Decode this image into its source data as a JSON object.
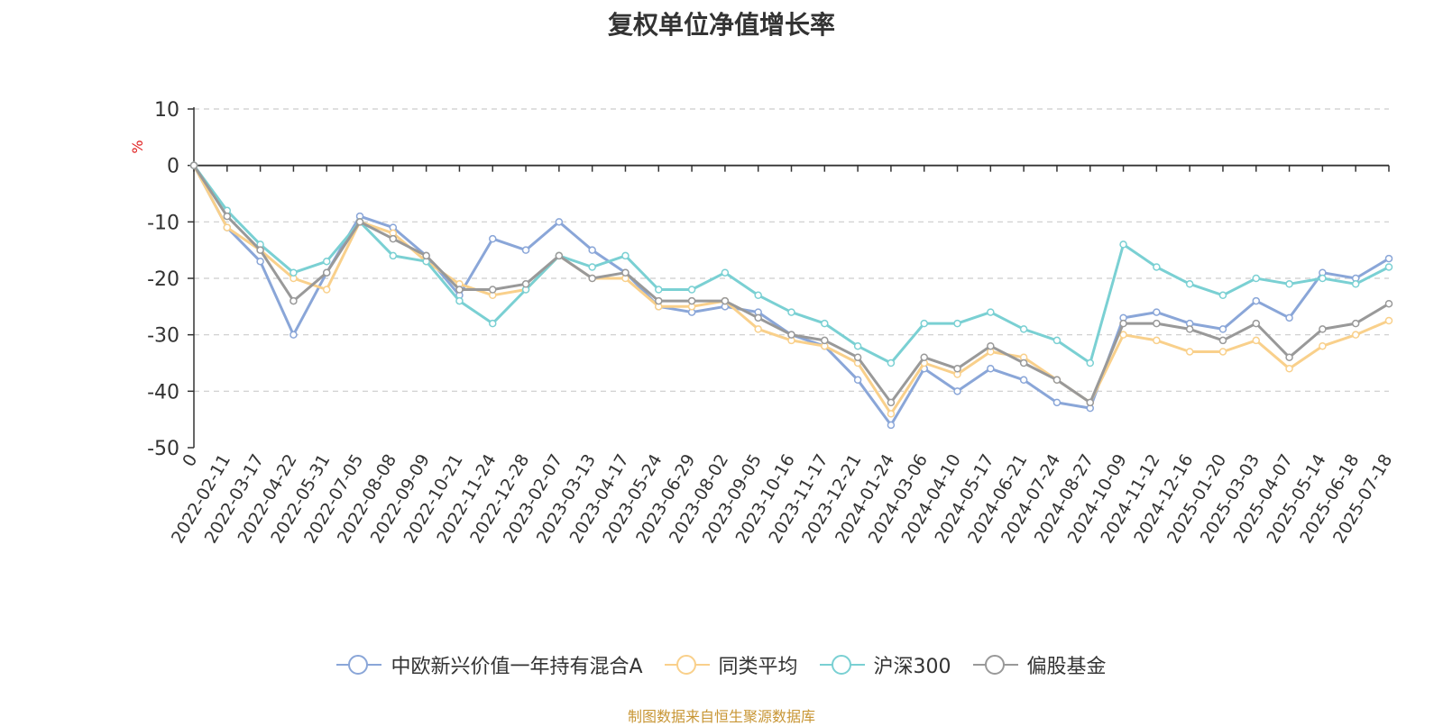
{
  "chart_data": {
    "type": "line",
    "title": "复权单位净值增长率",
    "ylabel": "%",
    "ylim": [
      -50,
      10
    ],
    "yticks": [
      10,
      0,
      -10,
      -20,
      -30,
      -40,
      -50
    ],
    "grid": true,
    "legend_position": "bottom",
    "x": [
      "0",
      "2022-02-11",
      "2022-03-17",
      "2022-04-22",
      "2022-05-31",
      "2022-07-05",
      "2022-08-08",
      "2022-09-09",
      "2022-10-21",
      "2022-11-24",
      "2022-12-28",
      "2023-02-07",
      "2023-03-13",
      "2023-04-17",
      "2023-05-24",
      "2023-06-29",
      "2023-08-02",
      "2023-09-05",
      "2023-10-16",
      "2023-11-17",
      "2023-12-21",
      "2024-01-24",
      "2024-03-06",
      "2024-04-10",
      "2024-05-17",
      "2024-06-21",
      "2024-07-24",
      "2024-08-27",
      "2024-10-09",
      "2024-11-12",
      "2024-12-16",
      "2025-01-20",
      "2025-03-03",
      "2025-04-07",
      "2025-05-14",
      "2025-06-18",
      "2025-07-18"
    ],
    "series": [
      {
        "name": "中欧新兴价值一年持有混合A",
        "color": "#8aa6d8",
        "values": [
          0,
          -11,
          -17,
          -30,
          -19,
          -9,
          -11,
          -16,
          -23,
          -13,
          -15,
          -10,
          -15,
          -19,
          -25,
          -26,
          -25,
          -26,
          -30,
          -32,
          -38,
          -46,
          -36,
          -40,
          -36,
          -38,
          -42,
          -43,
          -27,
          -26,
          -28,
          -29,
          -24,
          -27,
          -19,
          -20,
          -16.5
        ]
      },
      {
        "name": "同类平均",
        "color": "#f9d08b",
        "values": [
          0,
          -11,
          -15,
          -20,
          -22,
          -10,
          -12,
          -17,
          -21,
          -23,
          -22,
          -16,
          -20,
          -20,
          -25,
          -25,
          -24,
          -29,
          -31,
          -32,
          -35,
          -44,
          -35,
          -37,
          -33,
          -34,
          -38,
          -42,
          -30,
          -31,
          -33,
          -33,
          -31,
          -36,
          -32,
          -30,
          -27.5
        ]
      },
      {
        "name": "沪深300",
        "color": "#7ad0d3",
        "values": [
          0,
          -8,
          -14,
          -19,
          -17,
          -10,
          -16,
          -17,
          -24,
          -28,
          -22,
          -16,
          -18,
          -16,
          -22,
          -22,
          -19,
          -23,
          -26,
          -28,
          -32,
          -35,
          -28,
          -28,
          -26,
          -29,
          -31,
          -35,
          -14,
          -18,
          -21,
          -23,
          -20,
          -21,
          -20,
          -21,
          -18
        ]
      },
      {
        "name": "偏股基金",
        "color": "#999999",
        "values": [
          0,
          -9,
          -15,
          -24,
          -19,
          -10,
          -13,
          -16,
          -22,
          -22,
          -21,
          -16,
          -20,
          -19,
          -24,
          -24,
          -24,
          -27,
          -30,
          -31,
          -34,
          -42,
          -34,
          -36,
          -32,
          -35,
          -38,
          -42,
          -28,
          -28,
          -29,
          -31,
          -28,
          -34,
          -29,
          -28,
          -24.5
        ]
      }
    ]
  },
  "source_note": "制图数据来自恒生聚源数据库"
}
